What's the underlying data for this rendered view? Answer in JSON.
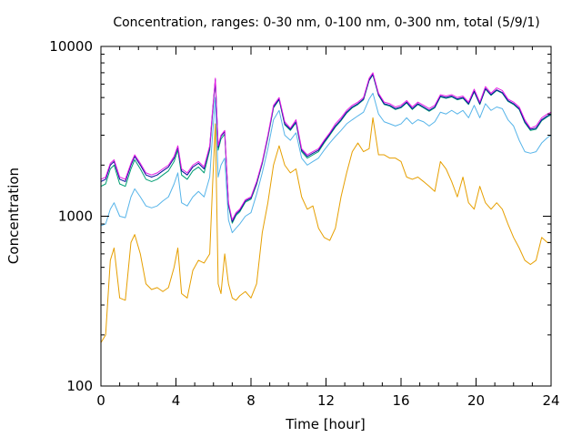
{
  "chart_data": {
    "type": "line",
    "title": "Concentration, ranges: 0-30 nm, 0-100 nm, 0-300 nm, total (5/9/1)",
    "xlabel": "Time [hour]",
    "ylabel": "Concentration",
    "xlim": [
      0,
      24
    ],
    "ylim": [
      100,
      10000
    ],
    "yscale": "log",
    "xticks": [
      "0",
      "4",
      "8",
      "12",
      "16",
      "20",
      "24"
    ],
    "xtick_values": [
      0,
      4,
      8,
      12,
      16,
      20,
      24
    ],
    "yticks": [
      "100",
      "1000",
      "10000"
    ],
    "ytick_values": [
      100,
      1000,
      10000
    ],
    "grid": false,
    "legend": "none",
    "x": [
      0,
      0.25,
      0.5,
      0.7,
      1.0,
      1.3,
      1.6,
      1.8,
      2.1,
      2.4,
      2.7,
      3.0,
      3.3,
      3.6,
      3.9,
      4.1,
      4.3,
      4.6,
      4.9,
      5.2,
      5.5,
      5.8,
      5.95,
      6.1,
      6.25,
      6.4,
      6.6,
      6.8,
      7.0,
      7.2,
      7.4,
      7.7,
      8.0,
      8.3,
      8.6,
      8.9,
      9.2,
      9.5,
      9.8,
      10.1,
      10.4,
      10.7,
      11.0,
      11.3,
      11.6,
      11.9,
      12.2,
      12.5,
      12.8,
      13.1,
      13.4,
      13.7,
      14.0,
      14.3,
      14.5,
      14.8,
      15.1,
      15.4,
      15.7,
      16.0,
      16.3,
      16.6,
      16.9,
      17.2,
      17.5,
      17.8,
      18.1,
      18.4,
      18.7,
      19.0,
      19.3,
      19.6,
      19.9,
      20.2,
      20.5,
      20.8,
      21.1,
      21.4,
      21.7,
      22.0,
      22.3,
      22.6,
      22.9,
      23.2,
      23.5,
      23.8,
      24.0
    ],
    "series": [
      {
        "color": "#e51ee5",
        "values": [
          1650,
          1700,
          2050,
          2150,
          1700,
          1650,
          2050,
          2300,
          2050,
          1800,
          1750,
          1800,
          1900,
          2000,
          2250,
          2600,
          1900,
          1800,
          2000,
          2100,
          1950,
          2600,
          4200,
          6500,
          2600,
          3000,
          3200,
          1200,
          950,
          1050,
          1100,
          1250,
          1300,
          1600,
          2100,
          3000,
          4500,
          5000,
          3600,
          3300,
          3700,
          2500,
          2300,
          2400,
          2500,
          2800,
          3100,
          3500,
          3800,
          4200,
          4500,
          4700,
          5000,
          6500,
          7000,
          5300,
          4700,
          4600,
          4400,
          4500,
          4800,
          4400,
          4700,
          4500,
          4300,
          4500,
          5200,
          5100,
          5200,
          5000,
          5100,
          4700,
          5600,
          4700,
          5800,
          5300,
          5700,
          5500,
          4900,
          4700,
          4400,
          3700,
          3300,
          3400,
          3800,
          4000,
          4100
        ]
      },
      {
        "color": "#0c0a9c",
        "values": [
          1600,
          1650,
          2000,
          2100,
          1650,
          1600,
          2000,
          2250,
          2000,
          1750,
          1700,
          1750,
          1850,
          1950,
          2200,
          2550,
          1850,
          1750,
          1950,
          2050,
          1900,
          2550,
          4100,
          6400,
          2550,
          2950,
          3150,
          1180,
          930,
          1030,
          1080,
          1230,
          1280,
          1570,
          2070,
          2950,
          4400,
          4900,
          3500,
          3250,
          3600,
          2450,
          2250,
          2350,
          2450,
          2750,
          3050,
          3400,
          3700,
          4100,
          4400,
          4600,
          4900,
          6350,
          6850,
          5200,
          4600,
          4500,
          4300,
          4400,
          4700,
          4300,
          4600,
          4400,
          4200,
          4400,
          5100,
          5000,
          5100,
          4900,
          5000,
          4600,
          5450,
          4600,
          5650,
          5200,
          5550,
          5350,
          4800,
          4600,
          4300,
          3600,
          3250,
          3300,
          3700,
          3900,
          4000
        ]
      },
      {
        "color": "#009e73",
        "values": [
          1500,
          1550,
          1900,
          2000,
          1550,
          1500,
          1900,
          2150,
          1900,
          1650,
          1600,
          1650,
          1750,
          1850,
          2100,
          2450,
          1750,
          1650,
          1850,
          1950,
          1800,
          2450,
          4000,
          6300,
          2450,
          2850,
          3050,
          1150,
          910,
          1010,
          1060,
          1210,
          1260,
          1540,
          2040,
          2900,
          4350,
          4850,
          3450,
          3200,
          3550,
          2400,
          2200,
          2300,
          2400,
          2700,
          3000,
          3350,
          3650,
          4050,
          4350,
          4550,
          4850,
          6300,
          6800,
          5150,
          4550,
          4450,
          4250,
          4350,
          4650,
          4250,
          4550,
          4350,
          4150,
          4350,
          5050,
          4950,
          5050,
          4850,
          4950,
          4550,
          5400,
          4550,
          5600,
          5150,
          5500,
          5300,
          4750,
          4550,
          4250,
          3550,
          3200,
          3250,
          3650,
          3850,
          3950
        ]
      },
      {
        "color": "#56b4e9",
        "values": [
          880,
          900,
          1100,
          1200,
          1000,
          980,
          1300,
          1450,
          1300,
          1150,
          1120,
          1150,
          1230,
          1300,
          1550,
          1800,
          1200,
          1150,
          1300,
          1400,
          1300,
          1700,
          3000,
          5000,
          1700,
          2000,
          2200,
          950,
          800,
          850,
          900,
          1000,
          1050,
          1350,
          1800,
          2500,
          3700,
          4200,
          3000,
          2800,
          3100,
          2200,
          2000,
          2100,
          2200,
          2450,
          2700,
          2950,
          3200,
          3500,
          3700,
          3900,
          4100,
          4900,
          5300,
          4000,
          3600,
          3500,
          3400,
          3500,
          3800,
          3500,
          3700,
          3600,
          3400,
          3600,
          4100,
          4000,
          4200,
          4000,
          4200,
          3800,
          4500,
          3800,
          4600,
          4200,
          4400,
          4300,
          3700,
          3400,
          2800,
          2400,
          2350,
          2400,
          2700,
          2900,
          3000
        ]
      },
      {
        "color": "#e69f00",
        "values": [
          180,
          200,
          550,
          650,
          330,
          320,
          700,
          780,
          600,
          400,
          370,
          380,
          360,
          380,
          500,
          650,
          350,
          330,
          480,
          550,
          530,
          600,
          1500,
          3500,
          400,
          350,
          600,
          400,
          330,
          320,
          340,
          360,
          330,
          400,
          800,
          1200,
          2000,
          2600,
          2000,
          1800,
          1900,
          1300,
          1100,
          1150,
          850,
          750,
          720,
          850,
          1300,
          1800,
          2400,
          2700,
          2400,
          2500,
          3800,
          2300,
          2300,
          2200,
          2200,
          2100,
          1700,
          1650,
          1700,
          1600,
          1500,
          1400,
          2100,
          1900,
          1600,
          1300,
          1700,
          1200,
          1100,
          1500,
          1200,
          1100,
          1200,
          1100,
          900,
          750,
          650,
          550,
          520,
          550,
          750,
          700,
          700
        ]
      }
    ]
  }
}
